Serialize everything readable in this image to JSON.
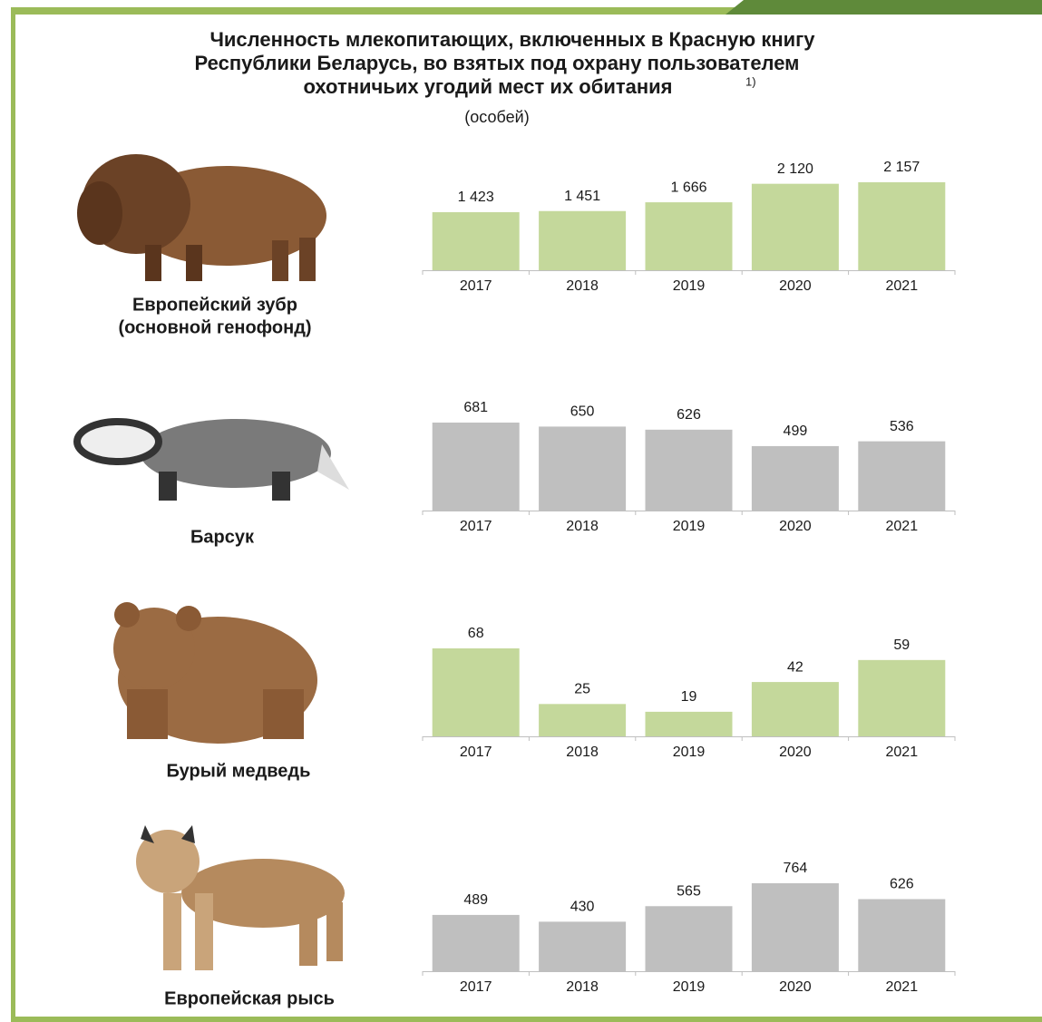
{
  "title_lines": [
    "Численность млекопитающих, включенных в Красную книгу",
    "Республики Беларусь, во взятых под охрану пользователем",
    "охотничьих угодий мест их обитания"
  ],
  "footnote_mark": "1)",
  "unit": "(особей)",
  "chart_data": [
    {
      "type": "bar",
      "title": "Европейский зубр",
      "subtitle": "(основной генофонд)",
      "categories": [
        "2017",
        "2018",
        "2019",
        "2020",
        "2021"
      ],
      "values": [
        1423,
        1451,
        1666,
        2120,
        2157
      ],
      "value_labels": [
        "1 423",
        "1 451",
        "1 666",
        "2 120",
        "2 157"
      ],
      "color": "#c4d89b"
    },
    {
      "type": "bar",
      "title": "Барсук",
      "categories": [
        "2017",
        "2018",
        "2019",
        "2020",
        "2021"
      ],
      "values": [
        681,
        650,
        626,
        499,
        536
      ],
      "color": "#bfbfbf"
    },
    {
      "type": "bar",
      "title": "Бурый медведь",
      "categories": [
        "2017",
        "2018",
        "2019",
        "2020",
        "2021"
      ],
      "values": [
        68,
        25,
        19,
        42,
        59
      ],
      "color": "#c4d89b"
    },
    {
      "type": "bar",
      "title": "Европейская рысь",
      "categories": [
        "2017",
        "2018",
        "2019",
        "2020",
        "2021"
      ],
      "values": [
        489,
        430,
        565,
        764,
        626
      ],
      "color": "#bfbfbf"
    }
  ]
}
